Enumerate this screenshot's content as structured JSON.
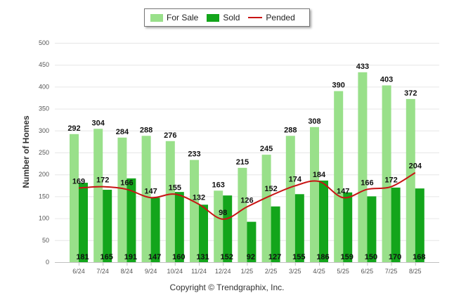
{
  "chart_data": {
    "type": "bar",
    "categories": [
      "6/24",
      "7/24",
      "8/24",
      "9/24",
      "10/24",
      "11/24",
      "12/24",
      "1/25",
      "2/25",
      "3/25",
      "4/25",
      "5/25",
      "6/25",
      "7/25",
      "8/25"
    ],
    "series": [
      {
        "name": "For Sale",
        "kind": "bar",
        "color": "#99e08a",
        "values": [
          292,
          304,
          284,
          288,
          276,
          233,
          163,
          215,
          245,
          288,
          308,
          390,
          433,
          403,
          372
        ]
      },
      {
        "name": "Sold",
        "kind": "bar",
        "color": "#13a51b",
        "values": [
          181,
          165,
          191,
          147,
          160,
          131,
          152,
          92,
          127,
          155,
          186,
          159,
          150,
          170,
          168
        ]
      },
      {
        "name": "Pended",
        "kind": "line",
        "color": "#c81414",
        "values": [
          169,
          172,
          166,
          147,
          155,
          132,
          98,
          126,
          152,
          174,
          184,
          147,
          166,
          172,
          204
        ]
      }
    ],
    "ylabel": "Number of Homes",
    "xlabel": "",
    "ylim": [
      0,
      500
    ],
    "yticks": [
      0,
      50,
      100,
      150,
      200,
      250,
      300,
      350,
      400,
      450,
      500
    ],
    "grid": true,
    "legend_position": "top-center"
  },
  "footer": {
    "copyright": "Copyright © Trendgraphix, Inc."
  }
}
